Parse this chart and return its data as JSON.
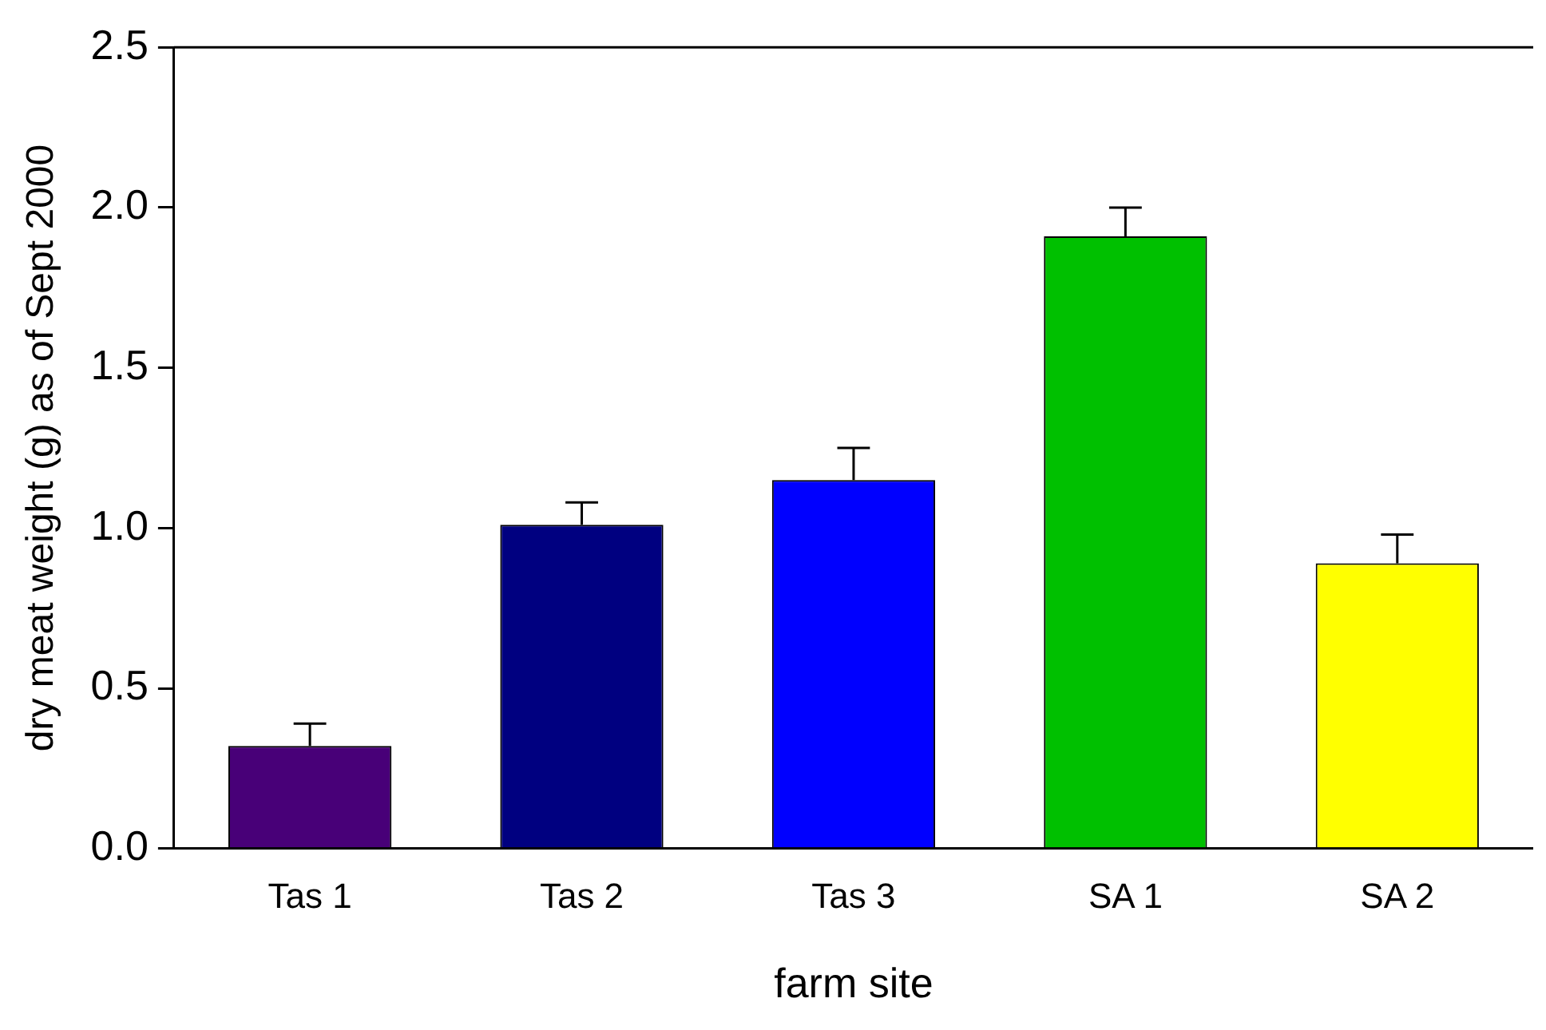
{
  "chart_data": {
    "type": "bar",
    "xlabel": "farm site",
    "ylabel": "dry meat weight (g) as of Sept 2000",
    "categories": [
      "Tas 1",
      "Tas 2",
      "Tas 3",
      "SA 1",
      "SA 2"
    ],
    "values": [
      0.32,
      1.01,
      1.15,
      1.91,
      0.89
    ],
    "colors": [
      "#480078",
      "#000080",
      "#0000ff",
      "#00c000",
      "#ffff00"
    ],
    "errors": [
      [
        0.32,
        0.39
      ],
      [
        1.01,
        1.08
      ],
      [
        1.15,
        1.25
      ],
      [
        1.91,
        2.0
      ],
      [
        0.89,
        0.98
      ]
    ],
    "ylim": [
      0,
      2.5
    ],
    "yticks": [
      {
        "value": 0,
        "label": "0.0"
      },
      {
        "value": 0.5,
        "label": "0.5"
      },
      {
        "value": 1,
        "label": "1.0"
      },
      {
        "value": 1.5,
        "label": "1.5"
      },
      {
        "value": 2,
        "label": "2.0"
      },
      {
        "value": 2.5,
        "label": "2.5"
      }
    ],
    "grid": false,
    "legend": false
  }
}
